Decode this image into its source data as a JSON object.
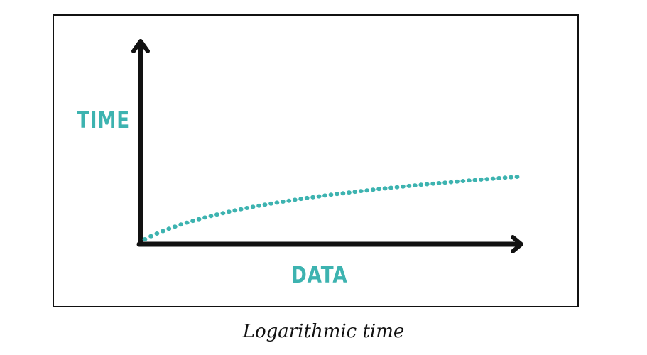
{
  "diagram": {
    "y_axis_label": "TIME",
    "x_axis_label": "DATA",
    "caption": "Logarithmic time",
    "curve_type": "logarithmic",
    "curve_style": "dotted",
    "colors": {
      "curve": "#3db3b0",
      "axis": "#111111",
      "labels": "#3db3b0",
      "frame": "#111111",
      "caption": "#111111"
    }
  }
}
